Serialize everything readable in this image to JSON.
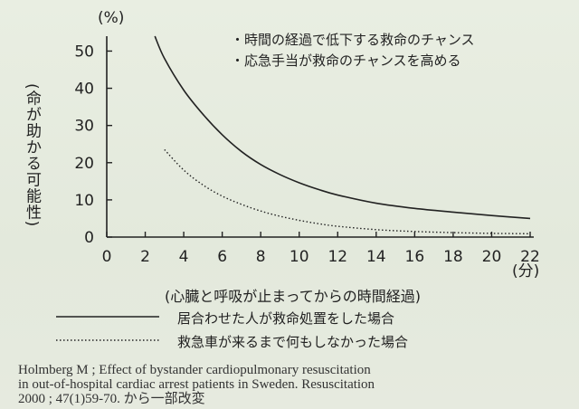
{
  "chart_data": {
    "type": "line",
    "y_unit_label": "(%)",
    "x_unit_label": "(分)",
    "ylabel": "(命が助かる可能性)",
    "xlabel": "(心臓と呼吸が止まってからの時間経過)",
    "x_ticks": [
      "0",
      "2",
      "4",
      "6",
      "8",
      "10",
      "12",
      "14",
      "16",
      "18",
      "20",
      "22"
    ],
    "y_ticks": [
      "0",
      "10",
      "20",
      "30",
      "40",
      "50"
    ],
    "xlim": [
      0,
      22
    ],
    "ylim": [
      0,
      54
    ],
    "grid": false,
    "annotations": [
      "・時間の経過で低下する救命のチャンス",
      "・応急手当が救命のチャンスを高める"
    ],
    "series": [
      {
        "name": "居合わせた人が救命処置をした場合",
        "style": "solid",
        "x": [
          2.5,
          3,
          4,
          5,
          6,
          7,
          8,
          9,
          10,
          11,
          12,
          14,
          16,
          18,
          20,
          22
        ],
        "y": [
          54,
          48,
          39.5,
          33,
          27.5,
          23,
          19.5,
          16.8,
          14.6,
          12.8,
          11.3,
          9.1,
          7.7,
          6.7,
          5.8,
          5.0
        ]
      },
      {
        "name": "救急車が来るまで何もしなかった場合",
        "style": "dotted",
        "x": [
          3,
          4,
          5,
          6,
          7,
          8,
          9,
          10,
          11,
          12,
          14,
          16,
          18,
          20,
          22
        ],
        "y": [
          23.5,
          18,
          14,
          11,
          8.8,
          7,
          5.6,
          4.5,
          3.6,
          2.9,
          2.0,
          1.5,
          1.2,
          1.0,
          0.9
        ]
      }
    ],
    "colors": {
      "line": "#222222",
      "axis": "#222222"
    }
  },
  "source_lines": [
    "Holmberg M ; Effect of bystander cardiopulmonary resuscitation",
    "in out-of-hospital cardiac arrest patients in Sweden. Resuscitation",
    "2000 ; 47(1)59-70. から一部改変"
  ]
}
